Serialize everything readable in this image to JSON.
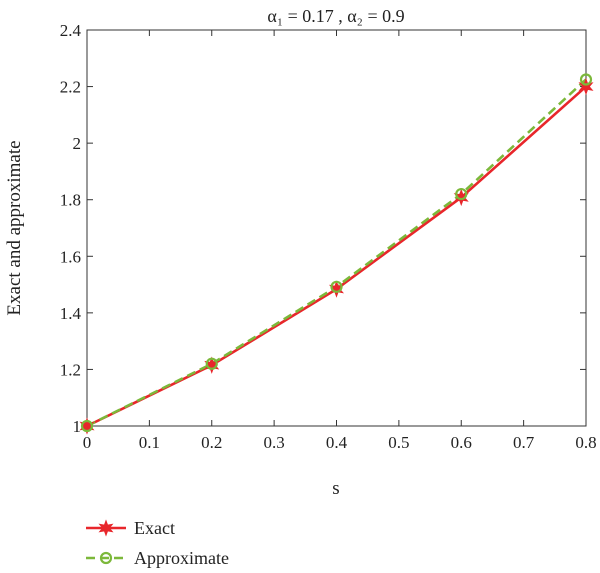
{
  "chart_data": {
    "type": "line",
    "title": "α₁ = 0.17 , α₂ = 0.9",
    "xlabel": "s",
    "ylabel": "Exact and approximate",
    "xlim": [
      0,
      0.8
    ],
    "ylim": [
      1,
      2.4
    ],
    "xticks": [
      0,
      0.1,
      0.2,
      0.3,
      0.4,
      0.5,
      0.6,
      0.7,
      0.8
    ],
    "xtick_labels": [
      "0",
      "0.1",
      "0.2",
      "0.3",
      "0.4",
      "0.5",
      "0.6",
      "0.7",
      "0.8"
    ],
    "yticks": [
      1,
      1.2,
      1.4,
      1.6,
      1.8,
      2,
      2.2,
      2.4
    ],
    "ytick_labels": [
      "1",
      "1.2",
      "1.4",
      "1.6",
      "1.8",
      "2",
      "2.2",
      "2.4"
    ],
    "grid": false,
    "legend_position": "bottom-left",
    "series": [
      {
        "name": "Exact",
        "color": "#e8262b",
        "line_style": "solid",
        "marker": "star",
        "x": [
          0,
          0.2,
          0.4,
          0.6,
          0.8
        ],
        "y": [
          1.0,
          1.215,
          1.484,
          1.808,
          2.2
        ]
      },
      {
        "name": "Approximate",
        "color": "#7cb83a",
        "line_style": "dashed",
        "marker": "circle",
        "x": [
          0,
          0.2,
          0.4,
          0.6,
          0.8
        ],
        "y": [
          1.0,
          1.22,
          1.492,
          1.82,
          2.225
        ]
      }
    ]
  }
}
